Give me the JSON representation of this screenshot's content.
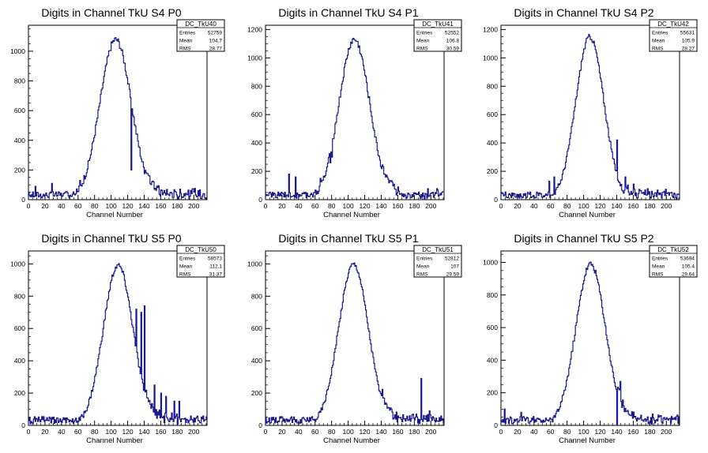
{
  "colors": {
    "histogram_line": "#1a1a8c",
    "axis": "#000000",
    "background": "#ffffff"
  },
  "chart_data": [
    {
      "type": "bar",
      "title": "Digits in Channel TkU S4 P0",
      "xlabel": "Channel Number",
      "ylabel": "",
      "xlim": [
        0,
        216
      ],
      "ylim": [
        0,
        1175
      ],
      "x_ticks": [
        0,
        20,
        40,
        60,
        80,
        100,
        120,
        140,
        160,
        180,
        200
      ],
      "y_ticks": [
        200,
        400,
        600,
        800,
        1000
      ],
      "grid": false,
      "stats": {
        "name": "DC_TkU40",
        "entries": "52759",
        "mean": "104.7",
        "rms": "28.77"
      },
      "spikes": [
        [
          8,
          90
        ],
        [
          28,
          110
        ],
        [
          62,
          130
        ],
        [
          124,
          200
        ]
      ],
      "outliers": [],
      "shape": {
        "mean": 105,
        "sigma": 19,
        "peak": 1080,
        "tail": 140,
        "noise": 60
      }
    },
    {
      "type": "bar",
      "title": "Digits in Channel TkU S4 P1",
      "xlabel": "Channel Number",
      "ylabel": "",
      "xlim": [
        0,
        216
      ],
      "ylim": [
        0,
        1230
      ],
      "x_ticks": [
        0,
        20,
        40,
        60,
        80,
        100,
        120,
        140,
        160,
        180,
        200
      ],
      "y_ticks": [
        200,
        400,
        600,
        800,
        1000,
        1200
      ],
      "grid": false,
      "stats": {
        "name": "DC_TkU41",
        "entries": "52552",
        "mean": "106.8",
        "rms": "30.59"
      },
      "spikes": [
        [
          28,
          180
        ],
        [
          36,
          160
        ],
        [
          66,
          150
        ],
        [
          72,
          170
        ],
        [
          78,
          260
        ],
        [
          80,
          300
        ]
      ],
      "outliers": [],
      "shape": {
        "mean": 107,
        "sigma": 18.5,
        "peak": 1130,
        "tail": 140,
        "noise": 60
      }
    },
    {
      "type": "bar",
      "title": "Digits in Channel TkU S4 P2",
      "xlabel": "Channel Number",
      "ylabel": "",
      "xlim": [
        0,
        216
      ],
      "ylim": [
        0,
        1230
      ],
      "x_ticks": [
        0,
        20,
        40,
        60,
        80,
        100,
        120,
        140,
        160,
        180,
        200
      ],
      "y_ticks": [
        200,
        400,
        600,
        800,
        1000,
        1200
      ],
      "grid": false,
      "stats": {
        "name": "DC_TkU42",
        "entries": "55631",
        "mean": "105.9",
        "rms": "28.27"
      },
      "spikes": [
        [
          58,
          130
        ],
        [
          64,
          160
        ],
        [
          140,
          420
        ],
        [
          150,
          160
        ],
        [
          160,
          110
        ]
      ],
      "outliers": [],
      "shape": {
        "mean": 107,
        "sigma": 17,
        "peak": 1150,
        "tail": 150,
        "noise": 50
      }
    },
    {
      "type": "bar",
      "title": "Digits in Channel TkU S5 P0",
      "xlabel": "Channel Number",
      "ylabel": "",
      "xlim": [
        0,
        216
      ],
      "ylim": [
        0,
        1080
      ],
      "x_ticks": [
        0,
        20,
        40,
        60,
        80,
        100,
        120,
        140,
        160,
        180,
        200
      ],
      "y_ticks": [
        200,
        400,
        600,
        800,
        1000
      ],
      "grid": false,
      "stats": {
        "name": "DC_TkU50",
        "entries": "58573",
        "mean": "112.1",
        "rms": "31.37"
      },
      "spikes": [
        [
          130,
          720
        ],
        [
          136,
          700
        ],
        [
          140,
          740
        ],
        [
          152,
          250
        ],
        [
          160,
          200
        ],
        [
          166,
          180
        ],
        [
          176,
          150
        ],
        [
          182,
          150
        ]
      ],
      "outliers": [],
      "shape": {
        "mean": 108,
        "sigma": 18,
        "peak": 990,
        "tail": 140,
        "noise": 45
      }
    },
    {
      "type": "bar",
      "title": "Digits in Channel TkU S5 P1",
      "xlabel": "Channel Number",
      "ylabel": "",
      "xlim": [
        0,
        216
      ],
      "ylim": [
        0,
        1080
      ],
      "x_ticks": [
        0,
        20,
        40,
        60,
        80,
        100,
        120,
        140,
        160,
        180,
        200
      ],
      "y_ticks": [
        200,
        400,
        600,
        800,
        1000
      ],
      "grid": false,
      "stats": {
        "name": "DC_TkU51",
        "entries": "52812",
        "mean": "107",
        "rms": "29.59"
      },
      "spikes": [
        [
          188,
          290
        ],
        [
          198,
          90
        ]
      ],
      "outliers": [],
      "shape": {
        "mean": 106,
        "sigma": 18,
        "peak": 1000,
        "tail": 140,
        "noise": 40
      }
    },
    {
      "type": "bar",
      "title": "Digits in Channel TkU S5 P2",
      "xlabel": "Channel Number",
      "ylabel": "",
      "xlim": [
        0,
        216
      ],
      "ylim": [
        0,
        1070
      ],
      "x_ticks": [
        0,
        20,
        40,
        60,
        80,
        100,
        120,
        140,
        160,
        180,
        200
      ],
      "y_ticks": [
        200,
        400,
        600,
        800,
        1000
      ],
      "grid": false,
      "stats": {
        "name": "DC_TkU52",
        "entries": "53694",
        "mean": "105.4",
        "rms": "29.64"
      },
      "spikes": [
        [
          4,
          100
        ],
        [
          24,
          80
        ],
        [
          144,
          270
        ]
      ],
      "outliers": [
        [
          140,
          0
        ]
      ],
      "shape": {
        "mean": 108,
        "sigma": 18,
        "peak": 990,
        "tail": 140,
        "noise": 45
      }
    }
  ]
}
